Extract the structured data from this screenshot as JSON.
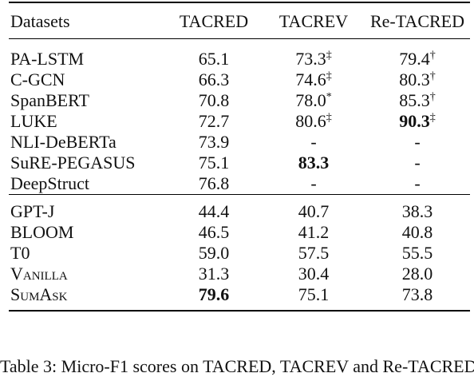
{
  "table": {
    "headers": [
      "Datasets",
      "TACRED",
      "TACREV",
      "Re-TACRED"
    ],
    "groups": [
      [
        {
          "name": "PA-LSTM",
          "cells": [
            {
              "v": "65.1"
            },
            {
              "v": "73.3",
              "sup": "‡"
            },
            {
              "v": "79.4",
              "sup": "†"
            }
          ]
        },
        {
          "name": "C-GCN",
          "cells": [
            {
              "v": "66.3"
            },
            {
              "v": "74.6",
              "sup": "‡"
            },
            {
              "v": "80.3",
              "sup": "†"
            }
          ]
        },
        {
          "name": "SpanBERT",
          "cells": [
            {
              "v": "70.8"
            },
            {
              "v": "78.0",
              "sup": "*"
            },
            {
              "v": "85.3",
              "sup": "†"
            }
          ]
        },
        {
          "name": "LUKE",
          "cells": [
            {
              "v": "72.7"
            },
            {
              "v": "80.6",
              "sup": "‡"
            },
            {
              "v": "90.3",
              "sup": "‡",
              "bold": true
            }
          ]
        },
        {
          "name": "NLI-DeBERTa",
          "cells": [
            {
              "v": "73.9"
            },
            {
              "v": "-"
            },
            {
              "v": "-"
            }
          ]
        },
        {
          "name": "SuRE-PEGASUS",
          "cells": [
            {
              "v": "75.1"
            },
            {
              "v": "83.3",
              "bold": true
            },
            {
              "v": "-"
            }
          ]
        },
        {
          "name": "DeepStruct",
          "cells": [
            {
              "v": "76.8"
            },
            {
              "v": "-"
            },
            {
              "v": "-"
            }
          ]
        }
      ],
      [
        {
          "name": "GPT-J",
          "cells": [
            {
              "v": "44.4"
            },
            {
              "v": "40.7"
            },
            {
              "v": "38.3"
            }
          ]
        },
        {
          "name": "BLOOM",
          "cells": [
            {
              "v": "46.5"
            },
            {
              "v": "41.2"
            },
            {
              "v": "40.8"
            }
          ]
        },
        {
          "name": "T0",
          "cells": [
            {
              "v": "59.0"
            },
            {
              "v": "57.5"
            },
            {
              "v": "55.5"
            }
          ]
        },
        {
          "name": "Vanilla",
          "smallcaps": true,
          "cells": [
            {
              "v": "31.3"
            },
            {
              "v": "30.4"
            },
            {
              "v": "28.0"
            }
          ]
        },
        {
          "name": "SumAsk",
          "smallcaps": true,
          "cells": [
            {
              "v": "79.6",
              "bold": true
            },
            {
              "v": "75.1"
            },
            {
              "v": "73.8"
            }
          ]
        }
      ]
    ]
  },
  "caption": "Table 3: Micro-F1 scores on TACRED, TACREV and Re-TACRED."
}
